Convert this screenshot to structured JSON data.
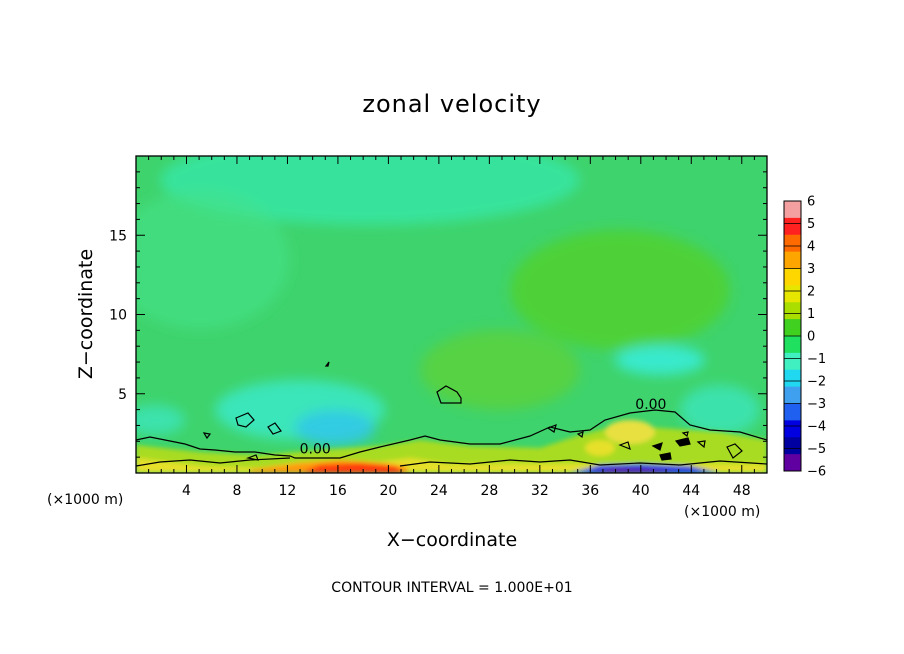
{
  "chart_data": {
    "type": "heatmap",
    "title": "zonal velocity",
    "xlabel": "X−coordinate",
    "ylabel": "Z−coordinate",
    "x_unit_label": "(×1000 m)",
    "xlim": [
      0,
      50
    ],
    "ylim": [
      0,
      20
    ],
    "x_ticks": [
      4,
      8,
      12,
      16,
      20,
      24,
      28,
      32,
      36,
      40,
      44,
      48
    ],
    "y_ticks": [
      5,
      10,
      15
    ],
    "colorbar": {
      "ticks": [
        6,
        5,
        4,
        3,
        2,
        1,
        0,
        -1,
        -2,
        -3,
        -4,
        -5,
        -6
      ],
      "tick_labels": [
        "6",
        "5",
        "4",
        "3",
        "2",
        "1",
        "0",
        "−1",
        "−2",
        "−3",
        "−4",
        "−5",
        "−6"
      ],
      "colors": [
        "#f4a0a0",
        "#ff2020",
        "#ff6a00",
        "#ffa500",
        "#ffd700",
        "#e6e600",
        "#aadd00",
        "#40d020",
        "#20e060",
        "#40f0c0",
        "#20d8f0",
        "#40a0f0",
        "#2060f0",
        "#0000e0",
        "#0000a0",
        "#6000a0"
      ]
    },
    "contour_levels": [
      0
    ],
    "contour_labels": [
      {
        "text": "0.00",
        "x": 14.2,
        "z": 1.3
      },
      {
        "text": "0.00",
        "x": 40.8,
        "z": 4.1
      }
    ],
    "field_regions": [
      {
        "x": 25,
        "z": 12,
        "value": -0.3
      },
      {
        "x": 20,
        "z": 19,
        "value": -0.9
      },
      {
        "x": 35,
        "z": 8,
        "value": 0.4
      },
      {
        "x": 15,
        "z": 3.2,
        "value": -1.8
      },
      {
        "x": 16,
        "z": 0.4,
        "value": 5.5
      },
      {
        "x": 40,
        "z": 7.5,
        "value": -1.6
      },
      {
        "x": 40,
        "z": 2.5,
        "value": 1.8
      },
      {
        "x": 44,
        "z": 0.3,
        "value": -4.5
      }
    ]
  },
  "footer": {
    "contour_note": "CONTOUR INTERVAL = 1.000E+01"
  }
}
